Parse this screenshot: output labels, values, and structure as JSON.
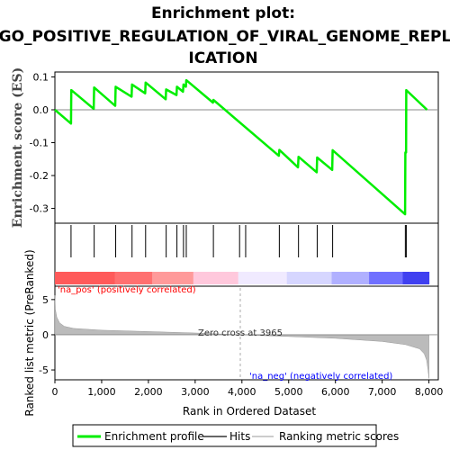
{
  "chart_data": {
    "type": "line",
    "title_lines": [
      "Enrichment plot:",
      "GO_POSITIVE_REGULATION_OF_VIRAL_GENOME_REPL",
      "ICATION"
    ],
    "xlabel": "Rank in Ordered Dataset",
    "x_ticks": [
      0,
      1000,
      2000,
      3000,
      4000,
      5000,
      6000,
      7000,
      8000
    ],
    "x_tick_labels": [
      "0",
      "1,000",
      "2,000",
      "3,000",
      "4,000",
      "5,000",
      "6,000",
      "7,000",
      "8,000"
    ],
    "xlim": [
      0,
      8200
    ],
    "es_panel": {
      "ylabel": "Enrichment score (ES)",
      "ylim": [
        -0.345,
        0.115
      ],
      "y_ticks": [
        0.1,
        0.0,
        -0.1,
        -0.2,
        -0.3
      ],
      "y_tick_labels": [
        "0.1",
        "0.0",
        "-0.1",
        "-0.2",
        "-0.3"
      ],
      "series_name": "Enrichment profile",
      "color": "#00ee00",
      "points": [
        [
          0,
          0.0
        ],
        [
          345,
          -0.042
        ],
        [
          350,
          0.06
        ],
        [
          830,
          0.003
        ],
        [
          840,
          0.068
        ],
        [
          1290,
          0.012
        ],
        [
          1300,
          0.07
        ],
        [
          1640,
          0.04
        ],
        [
          1650,
          0.077
        ],
        [
          1930,
          0.05
        ],
        [
          1940,
          0.083
        ],
        [
          2370,
          0.032
        ],
        [
          2380,
          0.062
        ],
        [
          2600,
          0.045
        ],
        [
          2610,
          0.07
        ],
        [
          2740,
          0.055
        ],
        [
          2750,
          0.077
        ],
        [
          2800,
          0.07
        ],
        [
          2810,
          0.09
        ],
        [
          3380,
          0.022
        ],
        [
          3390,
          0.03
        ],
        [
          4790,
          -0.14
        ],
        [
          4800,
          -0.122
        ],
        [
          5200,
          -0.175
        ],
        [
          5210,
          -0.143
        ],
        [
          5600,
          -0.19
        ],
        [
          5610,
          -0.145
        ],
        [
          5930,
          -0.183
        ],
        [
          5940,
          -0.123
        ],
        [
          7490,
          -0.318
        ],
        [
          7495,
          -0.13
        ],
        [
          7510,
          -0.13
        ],
        [
          7515,
          0.06
        ],
        [
          7960,
          0.0
        ]
      ]
    },
    "hits_panel": {
      "series_name": "Hits",
      "positions": [
        345,
        840,
        1300,
        1650,
        1940,
        2380,
        2610,
        2750,
        2810,
        3390,
        3950,
        4080,
        4800,
        5210,
        5610,
        5940,
        7495,
        7515
      ]
    },
    "rank_panel": {
      "ylabel": "Ranked list metric (PreRanked)",
      "ylim": [
        -6.4,
        6.9
      ],
      "y_ticks": [
        5,
        0,
        -5
      ],
      "y_tick_labels": [
        "5",
        "0",
        "-5"
      ],
      "series_name": "Ranking metric scores",
      "zero_cross_label": "Zero cross at 3965",
      "zero_cross": 3965,
      "pos_label": "'na_pos' (positively correlated)",
      "neg_label": "'na_neg' (negatively correlated)",
      "pos_color": "#ff0000",
      "neg_color": "#0000ff",
      "profile": [
        [
          0,
          5.6
        ],
        [
          10,
          3.6
        ],
        [
          40,
          2.5
        ],
        [
          100,
          1.7
        ],
        [
          200,
          1.2
        ],
        [
          400,
          0.9
        ],
        [
          1000,
          0.65
        ],
        [
          2000,
          0.45
        ],
        [
          3000,
          0.25
        ],
        [
          3965,
          0.0
        ],
        [
          5000,
          -0.25
        ],
        [
          6000,
          -0.5
        ],
        [
          7000,
          -0.95
        ],
        [
          7500,
          -1.4
        ],
        [
          7800,
          -2.0
        ],
        [
          7900,
          -2.7
        ],
        [
          7950,
          -3.6
        ],
        [
          7980,
          -5.0
        ],
        [
          8000,
          -6.2
        ]
      ]
    },
    "legend": [
      "Enrichment profile",
      "Hits",
      "Ranking metric scores"
    ]
  }
}
